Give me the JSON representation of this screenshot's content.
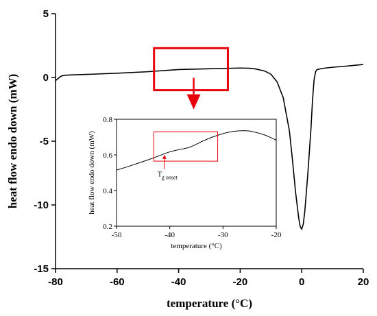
{
  "chart_data": [
    {
      "type": "line",
      "title": "",
      "xlabel": "temperature (°C)",
      "ylabel": "heat flow endo down (mW)",
      "xlim": [
        -80,
        20
      ],
      "ylim": [
        -15,
        5
      ],
      "xticks": [
        -80,
        -60,
        -40,
        -20,
        0,
        20
      ],
      "yticks": [
        5,
        0,
        -5,
        -10,
        -15
      ],
      "xtick_labels": [
        "-80",
        "-60",
        "-40",
        "-20",
        "0",
        "20"
      ],
      "ytick_labels": [
        "5",
        "0",
        "-5",
        "-10",
        "-15"
      ],
      "grid": false,
      "series": [
        {
          "x": [
            -80,
            -79.5,
            -79,
            -78.5,
            -78,
            -77,
            -75,
            -70,
            -60,
            -50,
            -40,
            -30,
            -20,
            -17,
            -15,
            -12,
            -10,
            -8,
            -6,
            -4,
            -3,
            -2,
            -1,
            -0.5,
            0,
            0.5,
            1,
            2,
            3,
            3.5,
            4,
            4.5,
            5,
            7,
            10,
            15,
            20
          ],
          "y": [
            -0.25,
            -0.15,
            -0.05,
            0.05,
            0.12,
            0.17,
            0.2,
            0.24,
            0.33,
            0.45,
            0.62,
            0.68,
            0.74,
            0.72,
            0.67,
            0.5,
            0.25,
            -0.35,
            -1.6,
            -4.2,
            -6.5,
            -9.0,
            -11.0,
            -11.7,
            -11.9,
            -11.5,
            -10.5,
            -7.5,
            -4.0,
            -1.8,
            -0.2,
            0.45,
            0.62,
            0.72,
            0.8,
            0.9,
            1.02
          ]
        }
      ],
      "highlight_box": {
        "x": [
          -48,
          -24
        ],
        "y": [
          -1.0,
          2.3
        ],
        "color": "#e8000b"
      },
      "arrow_color": "#e8000b"
    },
    {
      "type": "line",
      "title": "",
      "xlabel": "temperature (°C)",
      "ylabel": "heat flow endo down (mW)",
      "xlim": [
        -50,
        -20
      ],
      "ylim": [
        0.2,
        0.8
      ],
      "xticks": [
        -50,
        -40,
        -30,
        -20
      ],
      "yticks": [
        0.8,
        0.6,
        0.4,
        0.2
      ],
      "xtick_labels": [
        "-50",
        "-40",
        "-30",
        "-20"
      ],
      "ytick_labels": [
        "0.8",
        "0.6",
        "0.4",
        "0.2"
      ],
      "grid": false,
      "series": [
        {
          "x": [
            -50,
            -48,
            -46,
            -44,
            -42,
            -41,
            -40,
            -39,
            -38,
            -37,
            -36,
            -35,
            -34,
            -33,
            -32,
            -31,
            -30,
            -29,
            -28,
            -27,
            -26,
            -25,
            -24,
            -23,
            -22,
            -21,
            -20
          ],
          "y": [
            0.515,
            0.533,
            0.553,
            0.573,
            0.595,
            0.607,
            0.617,
            0.625,
            0.631,
            0.637,
            0.646,
            0.66,
            0.675,
            0.688,
            0.7,
            0.71,
            0.72,
            0.727,
            0.732,
            0.735,
            0.736,
            0.734,
            0.728,
            0.72,
            0.71,
            0.697,
            0.683
          ]
        }
      ],
      "highlight_box": {
        "x": [
          -43,
          -31
        ],
        "y": [
          0.565,
          0.73
        ],
        "color": "#e8000b"
      },
      "annotation": {
        "label_main": "T",
        "label_sub": "g onset",
        "x": -41,
        "y": 0.605
      }
    }
  ]
}
